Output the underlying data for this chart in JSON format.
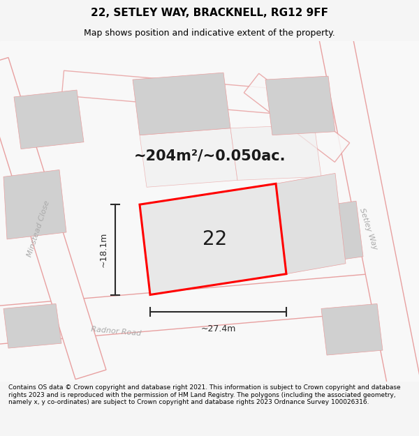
{
  "title": "22, SETLEY WAY, BRACKNELL, RG12 9FF",
  "subtitle": "Map shows position and indicative extent of the property.",
  "area_text": "~204m²/~0.050ac.",
  "number_label": "22",
  "dim_width": "~27.4m",
  "dim_height": "~18.1m",
  "footer": "Contains OS data © Crown copyright and database right 2021. This information is subject to Crown copyright and database rights 2023 and is reproduced with the permission of HM Land Registry. The polygons (including the associated geometry, namely x, y co-ordinates) are subject to Crown copyright and database rights 2023 Ordnance Survey 100026316.",
  "bg_color": "#f5f5f5",
  "road_color": "#e8a0a0",
  "road_fill": "#f8f8f8",
  "plot_color": "#ff0000",
  "building_fill": "#d0d0d0",
  "dim_color": "#2a2a2a",
  "street_label_color": "#aaaaaa",
  "title_fontsize": 11,
  "subtitle_fontsize": 9,
  "area_fontsize": 15,
  "number_fontsize": 20,
  "label_fontsize": 8,
  "footer_fontsize": 6.5
}
